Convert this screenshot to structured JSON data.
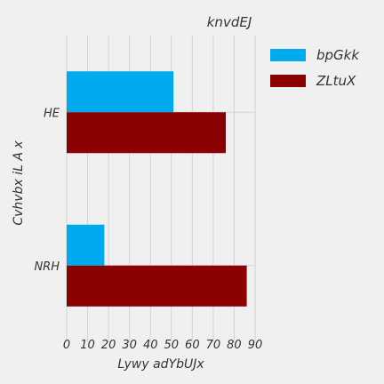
{
  "chart_data": {
    "type": "bar",
    "orientation": "horizontal",
    "title": "knvdEJ",
    "xlabel": "Lywy adYbUJx",
    "ylabel": "Cvhvbx iL  A x",
    "categories": [
      "HE",
      "NRH"
    ],
    "series": [
      {
        "name": "bpGkk",
        "values": [
          51,
          18
        ],
        "color": "#00aaee"
      },
      {
        "name": "ZLtuX",
        "values": [
          76,
          86
        ],
        "color": "#8b0000"
      }
    ],
    "xlim": [
      0,
      90
    ],
    "xticks": [
      "0",
      "10",
      "20",
      "30",
      "40",
      "50",
      "60",
      "70",
      "80",
      "90"
    ],
    "grid": true,
    "legend_position": "top-right"
  }
}
